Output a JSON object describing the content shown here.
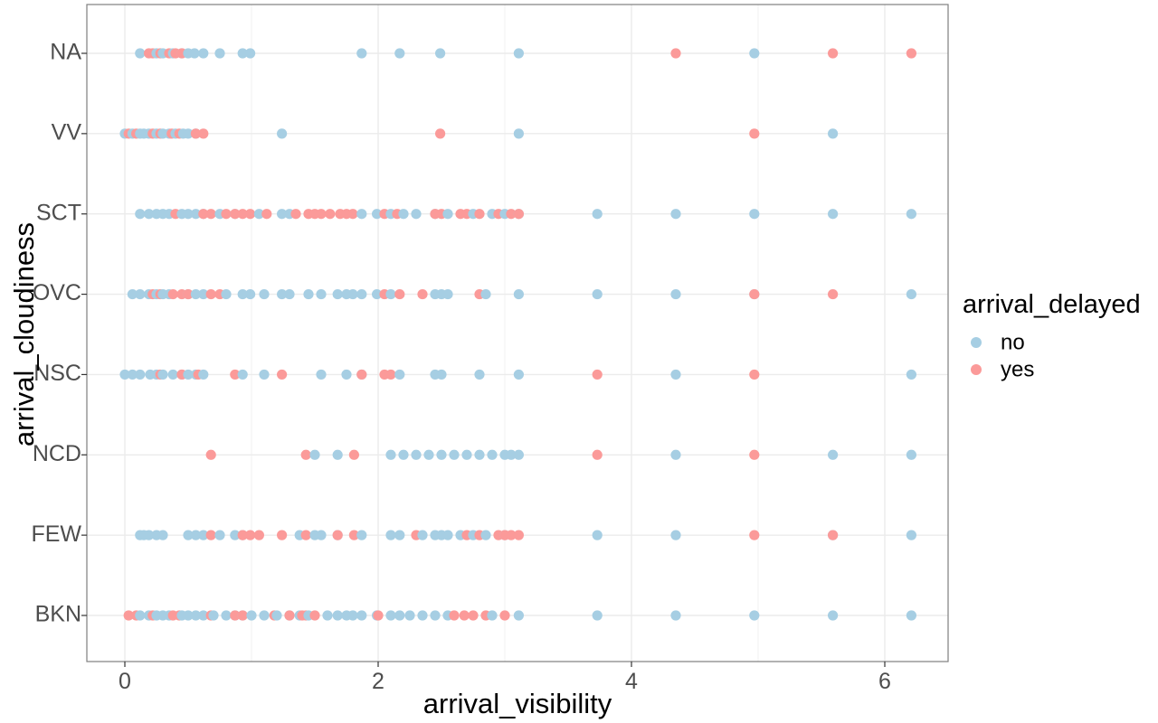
{
  "chart_data": {
    "type": "scatter",
    "xlabel": "arrival_visibility",
    "ylabel": "arrival_cloudiness",
    "xlim": [
      -0.3,
      6.5
    ],
    "x_ticks": [
      0,
      2,
      4,
      6
    ],
    "x_tick_labels": [
      "0",
      "2",
      "4",
      "6"
    ],
    "y_categories": [
      "BKN",
      "FEW",
      "NCD",
      "NSC",
      "OVC",
      "SCT",
      "VV",
      "NA"
    ],
    "grid": true,
    "legend": {
      "title": "arrival_delayed",
      "position": "right",
      "entries": [
        {
          "label": "no",
          "color": "#a6cee3"
        },
        {
          "label": "yes",
          "color": "#fb9a99"
        }
      ]
    },
    "series": [
      {
        "name": "no",
        "color": "#a6cee3",
        "points": [
          {
            "category": "NA",
            "x": [
              0.12,
              0.25,
              0.3,
              0.38,
              0.45,
              0.5,
              0.55,
              0.62,
              0.75,
              0.93,
              0.99,
              1.87,
              2.17,
              2.49,
              3.11,
              4.97
            ]
          },
          {
            "category": "VV",
            "x": [
              0.0,
              0.06,
              0.12,
              0.15,
              0.19,
              0.25,
              0.3,
              0.35,
              0.4,
              0.46,
              0.5,
              0.56,
              1.24,
              3.11,
              5.59
            ]
          },
          {
            "category": "SCT",
            "x": [
              0.12,
              0.19,
              0.25,
              0.3,
              0.35,
              0.45,
              0.5,
              0.56,
              0.62,
              0.75,
              0.87,
              1.06,
              1.24,
              1.3,
              1.87,
              1.99,
              2.1,
              2.2,
              2.3,
              2.45,
              2.55,
              2.75,
              2.9,
              3.0,
              3.11,
              3.73,
              4.35,
              4.97,
              5.59,
              6.21
            ]
          },
          {
            "category": "OVC",
            "x": [
              0.06,
              0.12,
              0.19,
              0.25,
              0.3,
              0.35,
              0.5,
              0.56,
              0.62,
              0.8,
              0.93,
              0.99,
              1.1,
              1.24,
              1.3,
              1.45,
              1.55,
              1.68,
              1.75,
              1.8,
              1.87,
              1.99,
              2.1,
              2.45,
              2.5,
              2.55,
              2.85,
              3.11,
              3.73,
              4.35,
              4.97,
              6.21
            ]
          },
          {
            "category": "NSC",
            "x": [
              0.0,
              0.06,
              0.12,
              0.2,
              0.25,
              0.3,
              0.38,
              0.45,
              0.5,
              0.56,
              0.62,
              0.93,
              1.1,
              1.55,
              1.75,
              1.87,
              2.17,
              2.45,
              2.5,
              2.8,
              3.11,
              4.35,
              6.21
            ]
          },
          {
            "category": "NCD",
            "x": [
              1.5,
              1.68,
              2.1,
              2.2,
              2.3,
              2.4,
              2.5,
              2.6,
              2.7,
              2.8,
              2.9,
              3.0,
              3.05,
              3.11,
              4.35,
              5.59,
              6.21
            ]
          },
          {
            "category": "FEW",
            "x": [
              0.12,
              0.15,
              0.19,
              0.25,
              0.3,
              0.5,
              0.56,
              0.62,
              0.75,
              0.87,
              0.93,
              1.38,
              1.5,
              1.55,
              1.68,
              1.87,
              2.1,
              2.17,
              2.35,
              2.45,
              2.5,
              2.55,
              2.65,
              2.75,
              2.85,
              3.0,
              3.73,
              4.35,
              5.59,
              6.21
            ]
          },
          {
            "category": "BKN",
            "x": [
              0.12,
              0.19,
              0.25,
              0.3,
              0.35,
              0.45,
              0.5,
              0.56,
              0.62,
              0.7,
              0.8,
              0.87,
              0.93,
              1.0,
              1.1,
              1.2,
              1.3,
              1.38,
              1.45,
              1.6,
              1.68,
              1.75,
              1.8,
              1.87,
              1.99,
              2.1,
              2.17,
              2.25,
              2.35,
              2.45,
              2.55,
              2.9,
              3.11,
              3.73,
              4.35,
              4.97,
              5.59,
              6.21
            ]
          }
        ]
      },
      {
        "name": "yes",
        "color": "#fb9a99",
        "points": [
          {
            "category": "NA",
            "x": [
              0.19,
              0.22,
              0.28,
              0.35,
              0.4,
              0.45,
              4.35,
              5.59,
              6.21
            ]
          },
          {
            "category": "VV",
            "x": [
              0.03,
              0.09,
              0.22,
              0.28,
              0.37,
              0.43,
              0.56,
              0.62,
              2.49,
              4.97
            ]
          },
          {
            "category": "SCT",
            "x": [
              0.4,
              0.62,
              0.68,
              0.8,
              0.87,
              0.93,
              0.99,
              1.12,
              1.35,
              1.45,
              1.5,
              1.55,
              1.62,
              1.7,
              1.75,
              1.8,
              2.05,
              2.15,
              2.45,
              2.5,
              2.65,
              2.7,
              2.8,
              2.95,
              3.05,
              3.11
            ]
          },
          {
            "category": "OVC",
            "x": [
              0.22,
              0.28,
              0.38,
              0.45,
              0.5,
              0.68,
              0.75,
              2.05,
              2.17,
              2.35,
              2.8,
              4.97,
              5.59
            ]
          },
          {
            "category": "NSC",
            "x": [
              0.28,
              0.45,
              0.58,
              0.87,
              1.24,
              1.87,
              2.05,
              2.1,
              3.73,
              4.97
            ]
          },
          {
            "category": "NCD",
            "x": [
              0.68,
              1.43,
              1.81,
              3.73,
              4.97
            ]
          },
          {
            "category": "FEW",
            "x": [
              0.68,
              0.93,
              0.99,
              1.06,
              1.24,
              1.43,
              1.68,
              1.81,
              2.3,
              2.7,
              2.8,
              2.95,
              3.0,
              3.05,
              3.11,
              4.97,
              5.59
            ]
          },
          {
            "category": "BKN",
            "x": [
              0.03,
              0.09,
              0.22,
              0.38,
              0.43,
              0.68,
              0.87,
              0.93,
              1.18,
              1.3,
              1.4,
              1.43,
              1.5,
              2.0,
              2.6,
              2.68,
              2.75,
              2.85,
              3.0
            ]
          }
        ]
      }
    ]
  }
}
